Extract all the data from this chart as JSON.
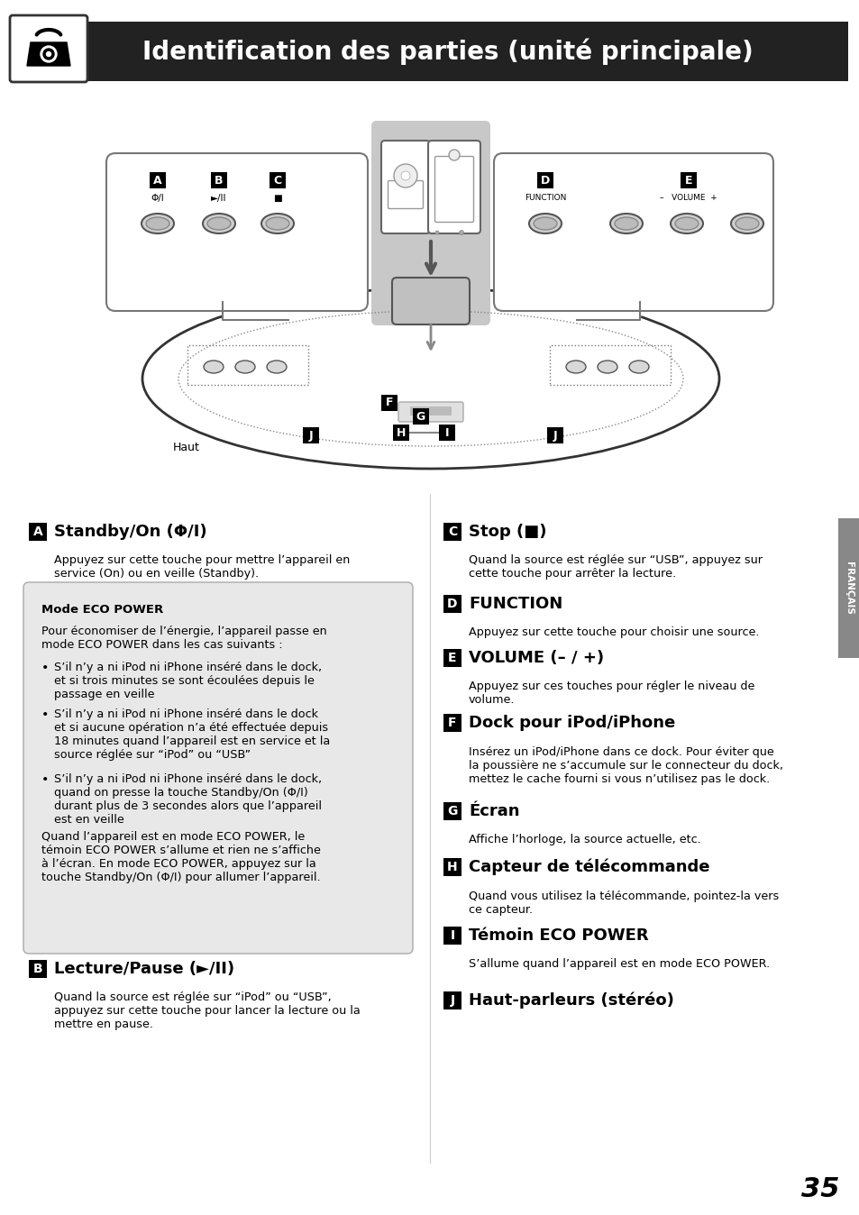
{
  "title": "Identification des parties (unité principale)",
  "page_number": "35",
  "bg_color": "#ffffff",
  "header_bg": "#222222",
  "header_text_color": "#ffffff",
  "sidebar_color": "#888888",
  "sidebar_text": "FRANÇAIS",
  "eco_box_bg": "#e8e8e8",
  "section_A_head": "Standby/On (Φ/I)",
  "section_A_body": "Appuyez sur cette touche pour mettre l’appareil en\nservice (On) ou en veille (Standby).",
  "eco_title": "Mode ECO POWER",
  "eco_body1": "Pour économiser de l’énergie, l’appareil passe en\nmode ECO POWER dans les cas suivants :",
  "eco_bullet1": "S’il n’y a ni iPod ni iPhone inséré dans le dock,\net si trois minutes se sont écoulées depuis le\npassage en veille",
  "eco_bullet2": "S’il n’y a ni iPod ni iPhone inséré dans le dock\net si aucune opération n’a été effectuée depuis\n18 minutes quand l’appareil est en service et la\nsource réglée sur “iPod” ou “USB”",
  "eco_bullet3": "S’il n’y a ni iPod ni iPhone inséré dans le dock,\nquand on presse la touche Standby/On (Φ/I)\ndurant plus de 3 secondes alors que l’appareil\nest en veille",
  "eco_body2": "Quand l’appareil est en mode ECO POWER, le\ntémoin ECO POWER s’allume et rien ne s’affiche\nà l’écran. En mode ECO POWER, appuyez sur la\ntouche Standby/On (Φ/I) pour allumer l’appareil.",
  "section_B_head": "Lecture/Pause (►/II)",
  "section_B_body": "Quand la source est réglée sur “iPod” ou “USB”,\nappuyez sur cette touche pour lancer la lecture ou la\nmettre en pause.",
  "section_C_head": "Stop (■)",
  "section_C_body": "Quand la source est réglée sur “USB”, appuyez sur\ncette touche pour arrêter la lecture.",
  "section_D_head": "FUNCTION",
  "section_D_body": "Appuyez sur cette touche pour choisir une source.",
  "section_E_head": "VOLUME (– / +)",
  "section_E_body": "Appuyez sur ces touches pour régler le niveau de\nvolume.",
  "section_F_head": "Dock pour iPod/iPhone",
  "section_F_body": "Insérez un iPod/iPhone dans ce dock. Pour éviter que\nla poussière ne s’accumule sur le connecteur du dock,\nmettez le cache fourni si vous n’utilisez pas le dock.",
  "section_G_head": "Écran",
  "section_G_body": "Affiche l’horloge, la source actuelle, etc.",
  "section_H_head": "Capteur de télécommande",
  "section_H_body": "Quand vous utilisez la télécommande, pointez-la vers\nce capteur.",
  "section_I_head": "Témoin ECO POWER",
  "section_I_body": "S’allume quand l’appareil est en mode ECO POWER.",
  "section_J_head": "Haut-parleurs (stéréo)",
  "section_J_body": ""
}
